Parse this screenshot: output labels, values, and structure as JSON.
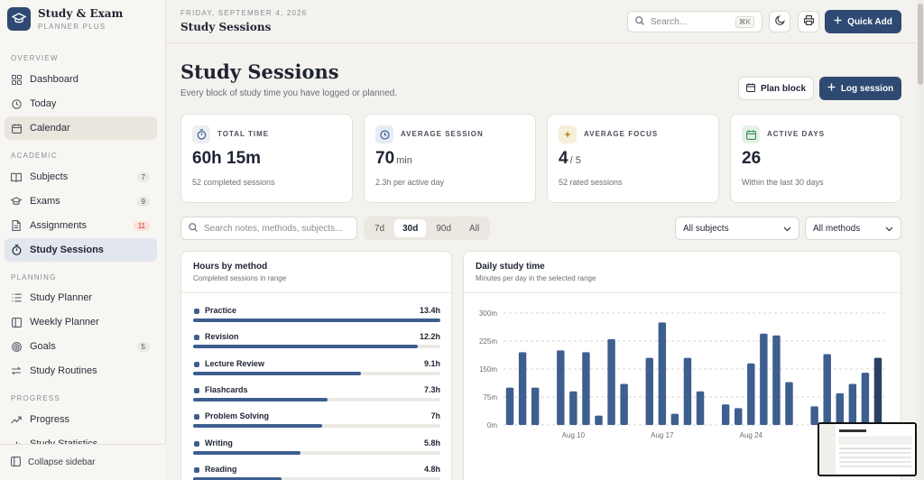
{
  "brand": {
    "title": "Study & Exam",
    "subtitle": "PLANNER PLUS"
  },
  "sidebar": {
    "sections": [
      {
        "label": "OVERVIEW"
      },
      {
        "label": "ACADEMIC"
      },
      {
        "label": "PLANNING"
      },
      {
        "label": "PROGRESS"
      }
    ],
    "items": [
      {
        "label": "Dashboard",
        "icon": "grid-icon"
      },
      {
        "label": "Today",
        "icon": "clock-icon"
      },
      {
        "label": "Calendar",
        "icon": "calendar-icon"
      },
      {
        "label": "Subjects",
        "icon": "book-icon",
        "badge": "7"
      },
      {
        "label": "Exams",
        "icon": "grad-cap-icon",
        "badge": "9"
      },
      {
        "label": "Assignments",
        "icon": "document-icon",
        "badge": "11"
      },
      {
        "label": "Study Sessions",
        "icon": "stopwatch-icon"
      },
      {
        "label": "Study Planner",
        "icon": "list-icon"
      },
      {
        "label": "Weekly Planner",
        "icon": "columns-icon"
      },
      {
        "label": "Goals",
        "icon": "target-icon",
        "badge": "5"
      },
      {
        "label": "Study Routines",
        "icon": "repeat-icon"
      },
      {
        "label": "Progress",
        "icon": "trend-icon"
      },
      {
        "label": "Study Statistics",
        "icon": "bar-chart-icon"
      }
    ],
    "collapse_label": "Collapse sidebar"
  },
  "topbar": {
    "date": "FRIDAY, SEPTEMBER 4, 2026",
    "title": "Study Sessions",
    "search_placeholder": "Search...",
    "search_kbd": "⌘K",
    "quick_add": "Quick Add"
  },
  "page": {
    "title": "Study Sessions",
    "subtitle": "Every block of study time you have logged or planned.",
    "plan_block": "Plan block",
    "log_session": "Log session"
  },
  "stats": [
    {
      "label": "TOTAL TIME",
      "value": "60h 15m",
      "unit": "",
      "note": "52 completed sessions",
      "icon": "stopwatch-icon",
      "tint": "#eceef3",
      "ink": "#3d5f8f"
    },
    {
      "label": "AVERAGE SESSION",
      "value": "70",
      "unit": "min",
      "note": "2.3h per active day",
      "icon": "clock-icon",
      "tint": "#e6ecf5",
      "ink": "#3d5f8f"
    },
    {
      "label": "AVERAGE FOCUS",
      "value": "4",
      "unit": "/ 5",
      "note": "52 rated sessions",
      "icon": "sparkle-icon",
      "tint": "#f6efdc",
      "ink": "#b8892b"
    },
    {
      "label": "ACTIVE DAYS",
      "value": "26",
      "unit": "",
      "note": "Within the last 30 days",
      "icon": "calendar-icon",
      "tint": "#e4f1e8",
      "ink": "#3c8a59"
    }
  ],
  "filters": {
    "search_placeholder": "Search notes, methods, subjects...",
    "ranges": [
      "7d",
      "30d",
      "90d",
      "All"
    ],
    "active_range": "30d",
    "subject_select": "All subjects",
    "method_select": "All methods"
  },
  "methods_panel": {
    "title": "Hours by method",
    "subtitle": "Completed sessions in range",
    "max_hours": 13.4,
    "rows": [
      {
        "name": "Practice",
        "label": "13.4h",
        "hours": 13.4
      },
      {
        "name": "Revision",
        "label": "12.2h",
        "hours": 12.2
      },
      {
        "name": "Lecture Review",
        "label": "9.1h",
        "hours": 9.1
      },
      {
        "name": "Flashcards",
        "label": "7.3h",
        "hours": 7.3
      },
      {
        "name": "Problem Solving",
        "label": "7h",
        "hours": 7.0
      },
      {
        "name": "Writing",
        "label": "5.8h",
        "hours": 5.8
      },
      {
        "name": "Reading",
        "label": "4.8h",
        "hours": 4.8
      }
    ]
  },
  "daily_panel": {
    "title": "Daily study time",
    "subtitle": "Minutes per day in the selected range"
  },
  "chart_data": {
    "type": "bar",
    "title": "Daily study time",
    "ylabel": "",
    "ylim": [
      0,
      300
    ],
    "yticks": [
      0,
      75,
      150,
      225,
      300
    ],
    "ytick_labels": [
      "0m",
      "75m",
      "150m",
      "225m",
      "300m"
    ],
    "xtick_labels": [
      {
        "label": "Aug 10",
        "index": 5
      },
      {
        "label": "Aug 17",
        "index": 12
      },
      {
        "label": "Aug 24",
        "index": 19
      }
    ],
    "values": [
      100,
      195,
      100,
      0,
      200,
      90,
      195,
      25,
      230,
      110,
      0,
      180,
      275,
      30,
      180,
      90,
      0,
      55,
      45,
      165,
      245,
      240,
      115,
      0,
      50,
      190,
      85,
      110,
      140,
      180
    ],
    "highlight_last": true,
    "bar_color": "#3d5f8f",
    "highlight_color": "#2a3f63"
  }
}
